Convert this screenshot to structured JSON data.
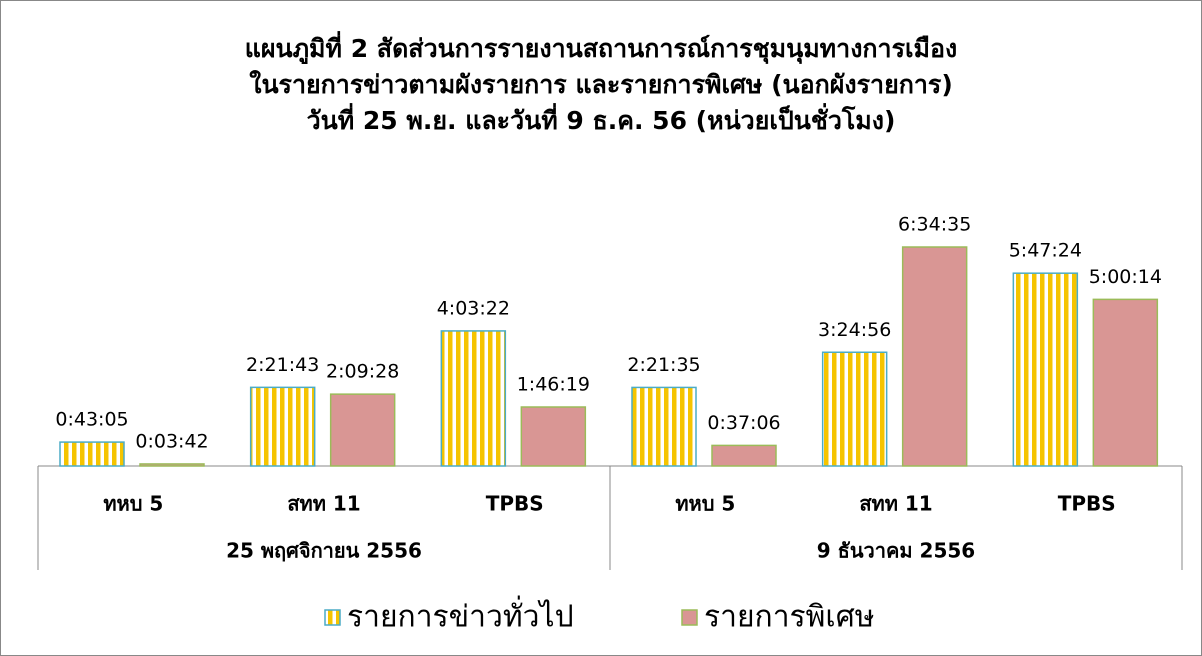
{
  "chart_data": {
    "type": "bar",
    "title": [
      "แผนภูมิที่ 2 สัดส่วนการรายงานสถานการณ์การชุมนุมทางการเมือง",
      "ในรายการข่าวตามผังรายการ และรายการพิเศษ (นอกผังรายการ)",
      "วันที่ 25 พ.ย. และวันที่ 9 ธ.ค. 56 (หน่วยเป็นชั่วโมง)"
    ],
    "groups": [
      {
        "name": "25 พฤศจิกายน 2556",
        "categories": [
          "ทหบ 5",
          "สทท 11",
          "TPBS"
        ]
      },
      {
        "name": "9 ธันวาคม 2556",
        "categories": [
          "ทหบ 5",
          "สทท 11",
          "TPBS"
        ]
      }
    ],
    "series": [
      {
        "name": "รายการข่าวทั่วไป",
        "color": "#f5c400",
        "border": "#4bacc6",
        "values": [
          2585,
          8503,
          14602,
          8495,
          12296,
          20844
        ],
        "value_labels": [
          "0:43:05",
          "2:21:43",
          "4:03:22",
          "2:21:35",
          "3:24:56",
          "5:47:24"
        ]
      },
      {
        "name": "รายการพิเศษ",
        "color": "#d99694",
        "border": "#9bbb59",
        "values": [
          222,
          7768,
          6379,
          2226,
          23675,
          18014
        ],
        "value_labels": [
          "0:03:42",
          "2:09:28",
          "1:46:19",
          "0:37:06",
          "6:34:35",
          "5:00:14"
        ]
      }
    ],
    "legend": "bottom"
  }
}
